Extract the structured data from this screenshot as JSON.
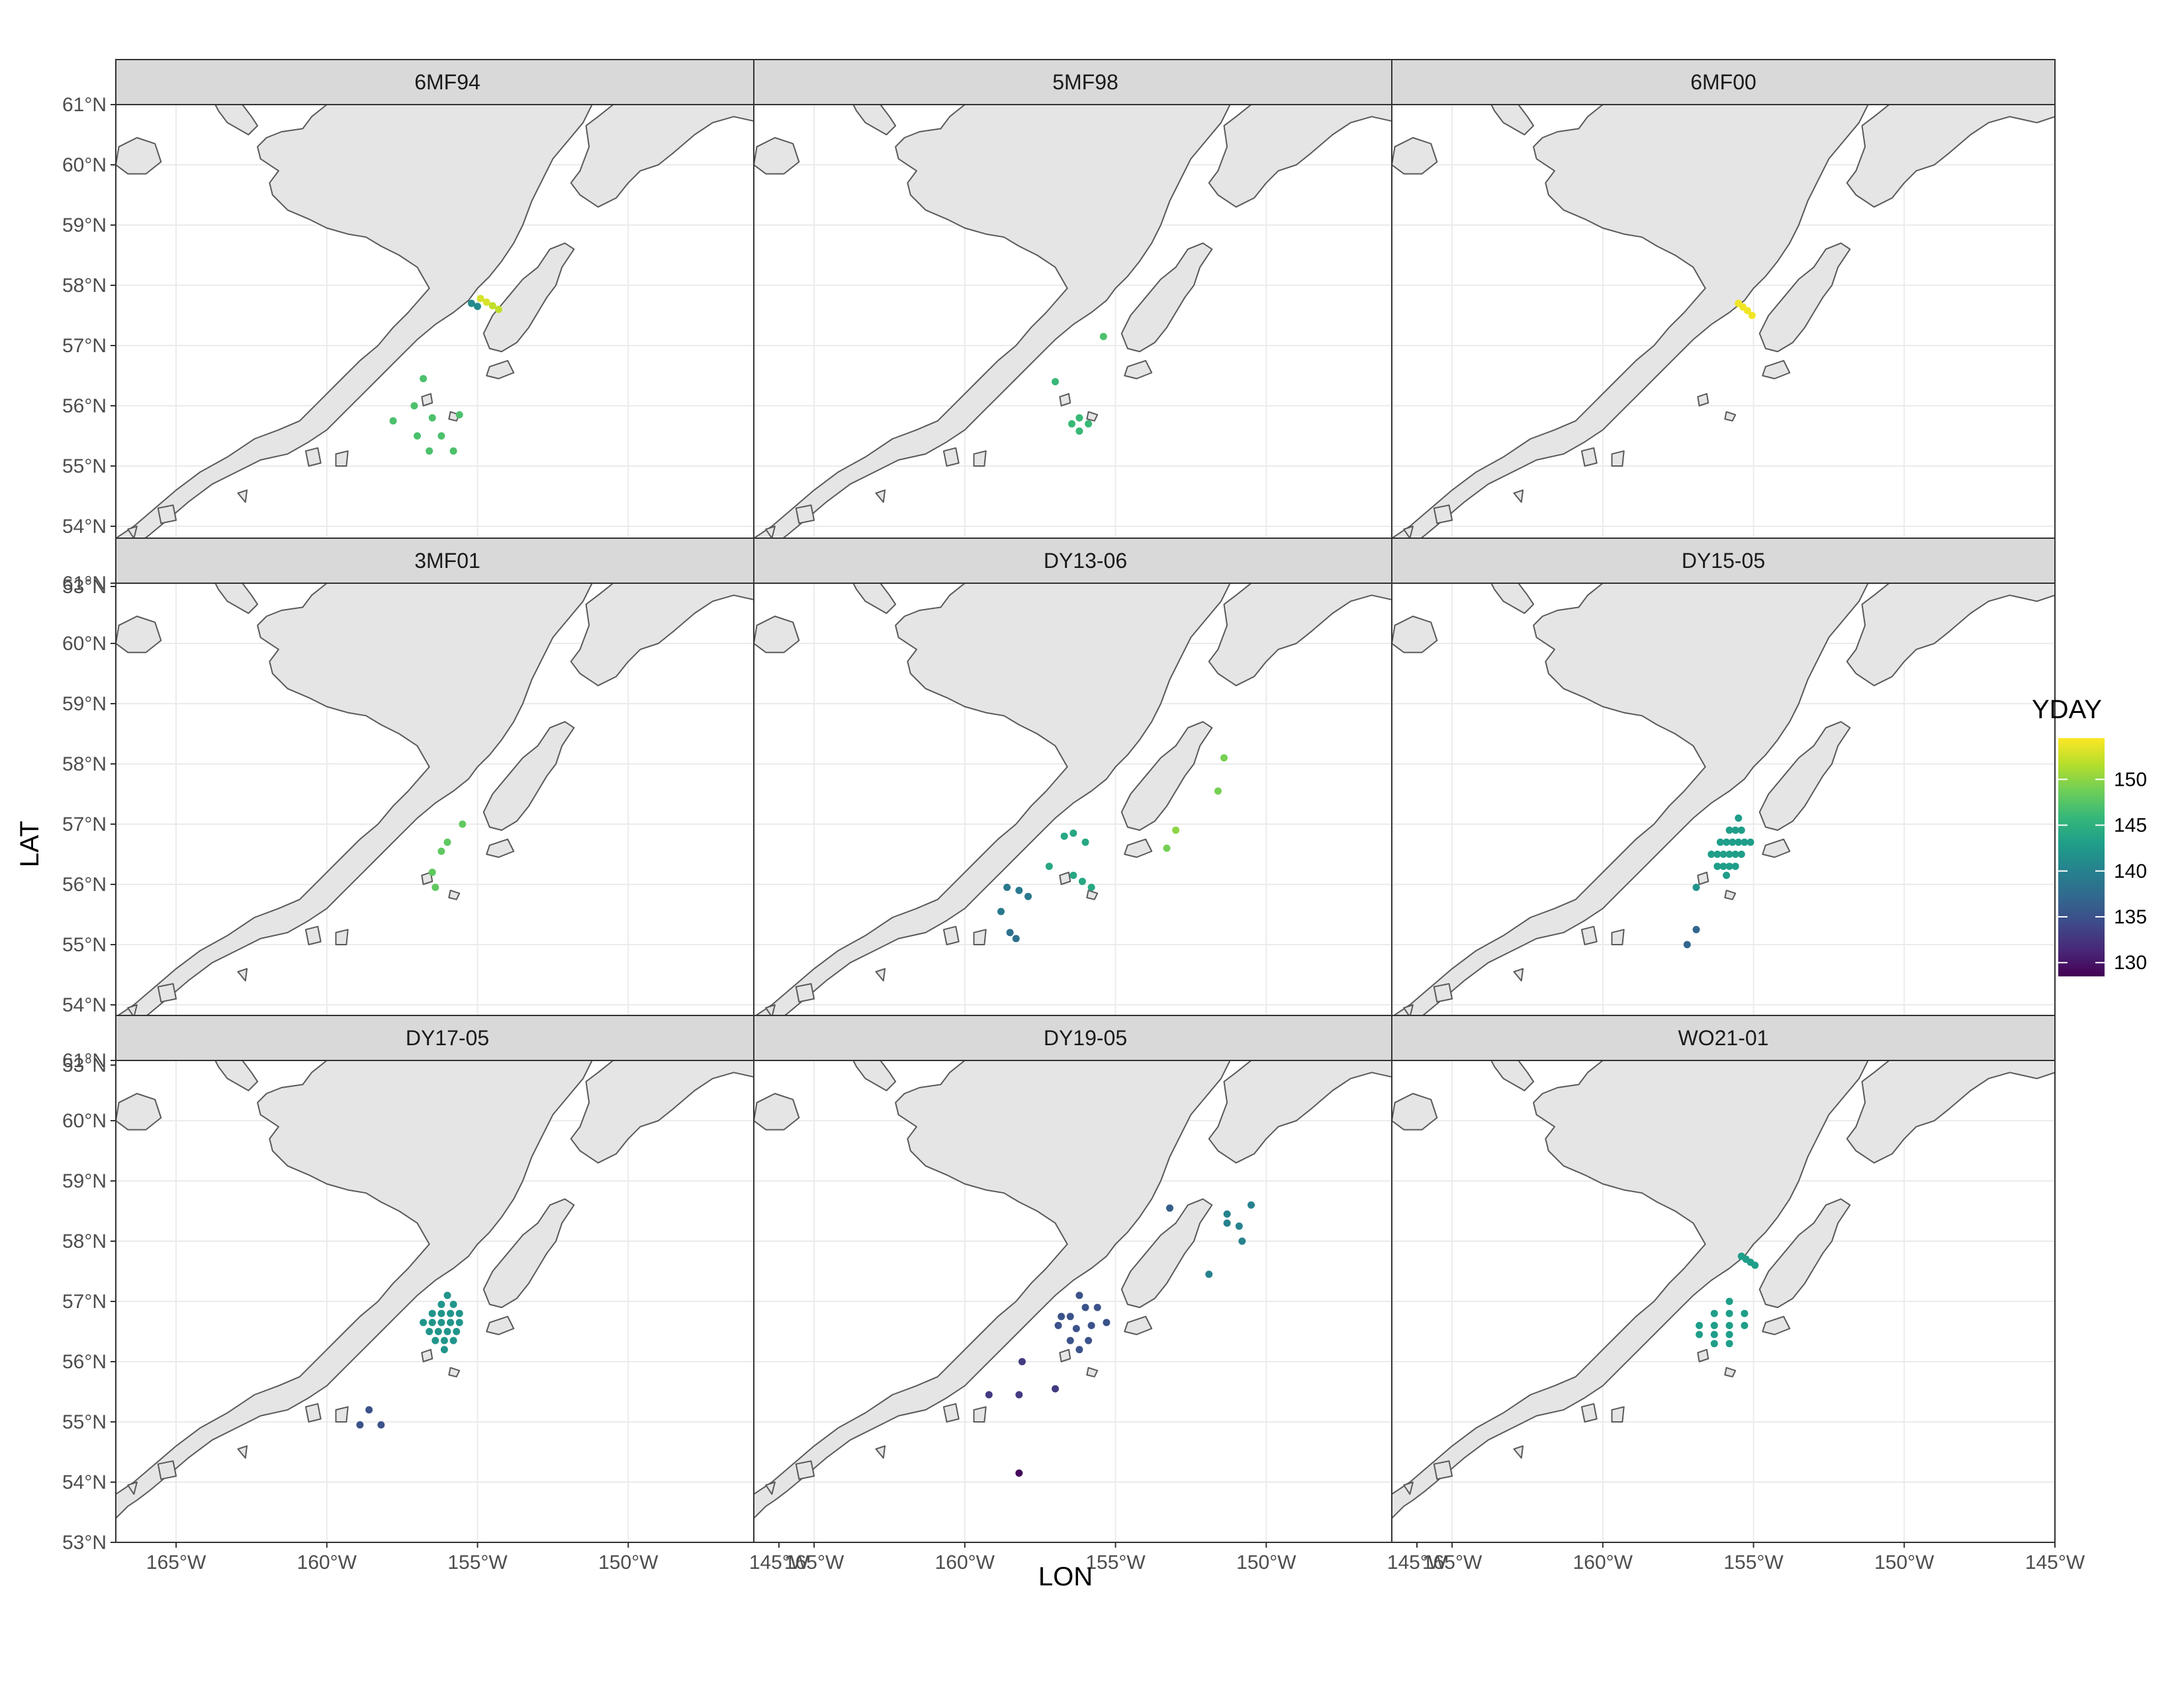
{
  "chart_data": {
    "type": "scatter",
    "xlabel": "LON",
    "ylabel": "LAT",
    "xlim": [
      -167,
      -145
    ],
    "ylim": [
      53,
      61
    ],
    "x_ticks": [
      {
        "value": -165,
        "label": "165°W"
      },
      {
        "value": -160,
        "label": "160°W"
      },
      {
        "value": -155,
        "label": "155°W"
      },
      {
        "value": -150,
        "label": "150°W"
      },
      {
        "value": -145,
        "label": "145°W"
      }
    ],
    "y_ticks": [
      {
        "value": 53,
        "label": "53°N"
      },
      {
        "value": 54,
        "label": "54°N"
      },
      {
        "value": 55,
        "label": "55°N"
      },
      {
        "value": 56,
        "label": "56°N"
      },
      {
        "value": 57,
        "label": "57°N"
      },
      {
        "value": 58,
        "label": "58°N"
      },
      {
        "value": 59,
        "label": "59°N"
      },
      {
        "value": 60,
        "label": "60°N"
      },
      {
        "value": 61,
        "label": "61°N"
      }
    ],
    "grid": true,
    "colors": {
      "land_fill": "#e5e5e5",
      "land_stroke": "#595959",
      "panel_border": "#333333",
      "strip_fill": "#d9d9d9",
      "grid": "#ebebeb"
    },
    "color_scale": {
      "title": "YDAY",
      "palette": "viridis",
      "min": 128.5,
      "max": 154.5,
      "breaks": [
        130,
        135,
        140,
        145,
        150
      ],
      "break_labels": [
        "130",
        "135",
        "140",
        "145",
        "150"
      ],
      "stops": [
        "#440154",
        "#482878",
        "#3e4a89",
        "#31688e",
        "#26828e",
        "#1f9e89",
        "#35b779",
        "#6ece58",
        "#b5de2b",
        "#fde725"
      ]
    },
    "legend_position": "right",
    "facets": [
      {
        "label": "6MF94",
        "points": [
          {
            "lon": -155.2,
            "lat": 57.7,
            "yday": 141
          },
          {
            "lon": -155.0,
            "lat": 57.65,
            "yday": 141
          },
          {
            "lon": -154.9,
            "lat": 57.78,
            "yday": 153
          },
          {
            "lon": -154.7,
            "lat": 57.72,
            "yday": 153
          },
          {
            "lon": -154.5,
            "lat": 57.66,
            "yday": 152
          },
          {
            "lon": -154.3,
            "lat": 57.6,
            "yday": 152
          },
          {
            "lon": -156.8,
            "lat": 56.45,
            "yday": 147
          },
          {
            "lon": -157.1,
            "lat": 56.0,
            "yday": 147
          },
          {
            "lon": -157.8,
            "lat": 55.75,
            "yday": 147
          },
          {
            "lon": -156.5,
            "lat": 55.8,
            "yday": 147
          },
          {
            "lon": -155.6,
            "lat": 55.85,
            "yday": 147
          },
          {
            "lon": -157.0,
            "lat": 55.5,
            "yday": 147
          },
          {
            "lon": -156.2,
            "lat": 55.5,
            "yday": 147
          },
          {
            "lon": -156.6,
            "lat": 55.25,
            "yday": 147
          },
          {
            "lon": -155.8,
            "lat": 55.25,
            "yday": 147
          }
        ]
      },
      {
        "label": "5MF98",
        "points": [
          {
            "lon": -155.4,
            "lat": 57.15,
            "yday": 147
          },
          {
            "lon": -157.0,
            "lat": 56.4,
            "yday": 146
          },
          {
            "lon": -156.2,
            "lat": 55.8,
            "yday": 146
          },
          {
            "lon": -156.45,
            "lat": 55.7,
            "yday": 146
          },
          {
            "lon": -155.9,
            "lat": 55.7,
            "yday": 146
          },
          {
            "lon": -156.2,
            "lat": 55.58,
            "yday": 146
          }
        ]
      },
      {
        "label": "6MF00",
        "points": [
          {
            "lon": -155.5,
            "lat": 57.7,
            "yday": 154
          },
          {
            "lon": -155.35,
            "lat": 57.64,
            "yday": 154
          },
          {
            "lon": -155.2,
            "lat": 57.58,
            "yday": 154
          },
          {
            "lon": -155.05,
            "lat": 57.5,
            "yday": 154
          }
        ]
      },
      {
        "label": "3MF01",
        "points": [
          {
            "lon": -155.5,
            "lat": 57.0,
            "yday": 148
          },
          {
            "lon": -156.0,
            "lat": 56.7,
            "yday": 148
          },
          {
            "lon": -156.2,
            "lat": 56.55,
            "yday": 148
          },
          {
            "lon": -156.5,
            "lat": 56.2,
            "yday": 148
          },
          {
            "lon": -156.4,
            "lat": 55.95,
            "yday": 148
          }
        ]
      },
      {
        "label": "DY13-06",
        "points": [
          {
            "lon": -151.4,
            "lat": 58.1,
            "yday": 149
          },
          {
            "lon": -151.6,
            "lat": 57.55,
            "yday": 149
          },
          {
            "lon": -153.0,
            "lat": 56.9,
            "yday": 150
          },
          {
            "lon": -153.3,
            "lat": 56.6,
            "yday": 149
          },
          {
            "lon": -156.7,
            "lat": 56.8,
            "yday": 144
          },
          {
            "lon": -156.4,
            "lat": 56.85,
            "yday": 144
          },
          {
            "lon": -156.0,
            "lat": 56.7,
            "yday": 144
          },
          {
            "lon": -157.2,
            "lat": 56.3,
            "yday": 144
          },
          {
            "lon": -156.4,
            "lat": 56.15,
            "yday": 144
          },
          {
            "lon": -156.1,
            "lat": 56.05,
            "yday": 144
          },
          {
            "lon": -155.8,
            "lat": 55.95,
            "yday": 144
          },
          {
            "lon": -158.6,
            "lat": 55.95,
            "yday": 139
          },
          {
            "lon": -158.2,
            "lat": 55.9,
            "yday": 139
          },
          {
            "lon": -157.9,
            "lat": 55.8,
            "yday": 139
          },
          {
            "lon": -158.8,
            "lat": 55.55,
            "yday": 139
          },
          {
            "lon": -158.5,
            "lat": 55.2,
            "yday": 138
          },
          {
            "lon": -158.3,
            "lat": 55.1,
            "yday": 138
          }
        ]
      },
      {
        "label": "DY15-05",
        "points": [
          {
            "lon": -155.5,
            "lat": 57.1,
            "yday": 143
          },
          {
            "lon": -155.8,
            "lat": 56.9,
            "yday": 143
          },
          {
            "lon": -155.6,
            "lat": 56.9,
            "yday": 143
          },
          {
            "lon": -155.4,
            "lat": 56.9,
            "yday": 143
          },
          {
            "lon": -156.1,
            "lat": 56.7,
            "yday": 143
          },
          {
            "lon": -155.9,
            "lat": 56.7,
            "yday": 143
          },
          {
            "lon": -155.7,
            "lat": 56.7,
            "yday": 143
          },
          {
            "lon": -155.5,
            "lat": 56.7,
            "yday": 143
          },
          {
            "lon": -155.3,
            "lat": 56.7,
            "yday": 143
          },
          {
            "lon": -155.1,
            "lat": 56.7,
            "yday": 143
          },
          {
            "lon": -156.4,
            "lat": 56.5,
            "yday": 143
          },
          {
            "lon": -156.2,
            "lat": 56.5,
            "yday": 143
          },
          {
            "lon": -156.0,
            "lat": 56.5,
            "yday": 143
          },
          {
            "lon": -155.8,
            "lat": 56.5,
            "yday": 143
          },
          {
            "lon": -155.6,
            "lat": 56.5,
            "yday": 143
          },
          {
            "lon": -155.4,
            "lat": 56.5,
            "yday": 143
          },
          {
            "lon": -156.2,
            "lat": 56.3,
            "yday": 143
          },
          {
            "lon": -156.0,
            "lat": 56.3,
            "yday": 143
          },
          {
            "lon": -155.8,
            "lat": 56.3,
            "yday": 143
          },
          {
            "lon": -155.6,
            "lat": 56.3,
            "yday": 143
          },
          {
            "lon": -155.9,
            "lat": 56.15,
            "yday": 143
          },
          {
            "lon": -156.9,
            "lat": 55.95,
            "yday": 142
          },
          {
            "lon": -156.9,
            "lat": 55.25,
            "yday": 137
          },
          {
            "lon": -157.2,
            "lat": 55.0,
            "yday": 137
          }
        ]
      },
      {
        "label": "DY17-05",
        "points": [
          {
            "lon": -156.0,
            "lat": 57.1,
            "yday": 142
          },
          {
            "lon": -156.2,
            "lat": 56.95,
            "yday": 142
          },
          {
            "lon": -155.8,
            "lat": 56.95,
            "yday": 142
          },
          {
            "lon": -156.5,
            "lat": 56.8,
            "yday": 142
          },
          {
            "lon": -156.2,
            "lat": 56.8,
            "yday": 142
          },
          {
            "lon": -155.9,
            "lat": 56.8,
            "yday": 142
          },
          {
            "lon": -155.6,
            "lat": 56.8,
            "yday": 142
          },
          {
            "lon": -156.8,
            "lat": 56.65,
            "yday": 142
          },
          {
            "lon": -156.5,
            "lat": 56.65,
            "yday": 142
          },
          {
            "lon": -156.2,
            "lat": 56.65,
            "yday": 142
          },
          {
            "lon": -155.9,
            "lat": 56.65,
            "yday": 142
          },
          {
            "lon": -155.6,
            "lat": 56.65,
            "yday": 142
          },
          {
            "lon": -156.6,
            "lat": 56.5,
            "yday": 142
          },
          {
            "lon": -156.3,
            "lat": 56.5,
            "yday": 142
          },
          {
            "lon": -156.0,
            "lat": 56.5,
            "yday": 142
          },
          {
            "lon": -155.7,
            "lat": 56.5,
            "yday": 142
          },
          {
            "lon": -156.4,
            "lat": 56.35,
            "yday": 142
          },
          {
            "lon": -156.1,
            "lat": 56.35,
            "yday": 142
          },
          {
            "lon": -155.8,
            "lat": 56.35,
            "yday": 142
          },
          {
            "lon": -156.1,
            "lat": 56.2,
            "yday": 142
          },
          {
            "lon": -158.6,
            "lat": 55.2,
            "yday": 135
          },
          {
            "lon": -158.9,
            "lat": 54.95,
            "yday": 135
          },
          {
            "lon": -158.2,
            "lat": 54.95,
            "yday": 135
          }
        ]
      },
      {
        "label": "DY19-05",
        "points": [
          {
            "lon": -153.2,
            "lat": 58.55,
            "yday": 136
          },
          {
            "lon": -151.3,
            "lat": 58.45,
            "yday": 140
          },
          {
            "lon": -150.5,
            "lat": 58.6,
            "yday": 140
          },
          {
            "lon": -151.3,
            "lat": 58.3,
            "yday": 140
          },
          {
            "lon": -150.9,
            "lat": 58.25,
            "yday": 140
          },
          {
            "lon": -150.8,
            "lat": 58.0,
            "yday": 140
          },
          {
            "lon": -151.9,
            "lat": 57.45,
            "yday": 140
          },
          {
            "lon": -156.2,
            "lat": 57.1,
            "yday": 135
          },
          {
            "lon": -156.0,
            "lat": 56.9,
            "yday": 135
          },
          {
            "lon": -155.6,
            "lat": 56.9,
            "yday": 135
          },
          {
            "lon": -156.8,
            "lat": 56.75,
            "yday": 135
          },
          {
            "lon": -156.5,
            "lat": 56.75,
            "yday": 135
          },
          {
            "lon": -156.9,
            "lat": 56.6,
            "yday": 135
          },
          {
            "lon": -156.3,
            "lat": 56.55,
            "yday": 135
          },
          {
            "lon": -155.3,
            "lat": 56.65,
            "yday": 135
          },
          {
            "lon": -156.5,
            "lat": 56.35,
            "yday": 135
          },
          {
            "lon": -155.9,
            "lat": 56.35,
            "yday": 135
          },
          {
            "lon": -156.2,
            "lat": 56.2,
            "yday": 135
          },
          {
            "lon": -155.8,
            "lat": 56.6,
            "yday": 135
          },
          {
            "lon": -158.1,
            "lat": 56.0,
            "yday": 133
          },
          {
            "lon": -157.0,
            "lat": 55.55,
            "yday": 133
          },
          {
            "lon": -158.2,
            "lat": 55.45,
            "yday": 133
          },
          {
            "lon": -159.2,
            "lat": 55.45,
            "yday": 133
          },
          {
            "lon": -158.2,
            "lat": 54.15,
            "yday": 129
          }
        ]
      },
      {
        "label": "WO21-01",
        "points": [
          {
            "lon": -155.4,
            "lat": 57.75,
            "yday": 143
          },
          {
            "lon": -155.25,
            "lat": 57.7,
            "yday": 143
          },
          {
            "lon": -155.1,
            "lat": 57.65,
            "yday": 143
          },
          {
            "lon": -154.95,
            "lat": 57.6,
            "yday": 143
          },
          {
            "lon": -155.8,
            "lat": 57.0,
            "yday": 143
          },
          {
            "lon": -156.3,
            "lat": 56.8,
            "yday": 143
          },
          {
            "lon": -155.8,
            "lat": 56.8,
            "yday": 143
          },
          {
            "lon": -155.3,
            "lat": 56.8,
            "yday": 143
          },
          {
            "lon": -156.8,
            "lat": 56.6,
            "yday": 143
          },
          {
            "lon": -156.3,
            "lat": 56.6,
            "yday": 143
          },
          {
            "lon": -155.8,
            "lat": 56.6,
            "yday": 143
          },
          {
            "lon": -155.3,
            "lat": 56.6,
            "yday": 143
          },
          {
            "lon": -156.8,
            "lat": 56.45,
            "yday": 143
          },
          {
            "lon": -156.3,
            "lat": 56.45,
            "yday": 143
          },
          {
            "lon": -155.8,
            "lat": 56.45,
            "yday": 143
          },
          {
            "lon": -156.3,
            "lat": 56.3,
            "yday": 143
          },
          {
            "lon": -155.8,
            "lat": 56.3,
            "yday": 143
          }
        ]
      }
    ]
  }
}
